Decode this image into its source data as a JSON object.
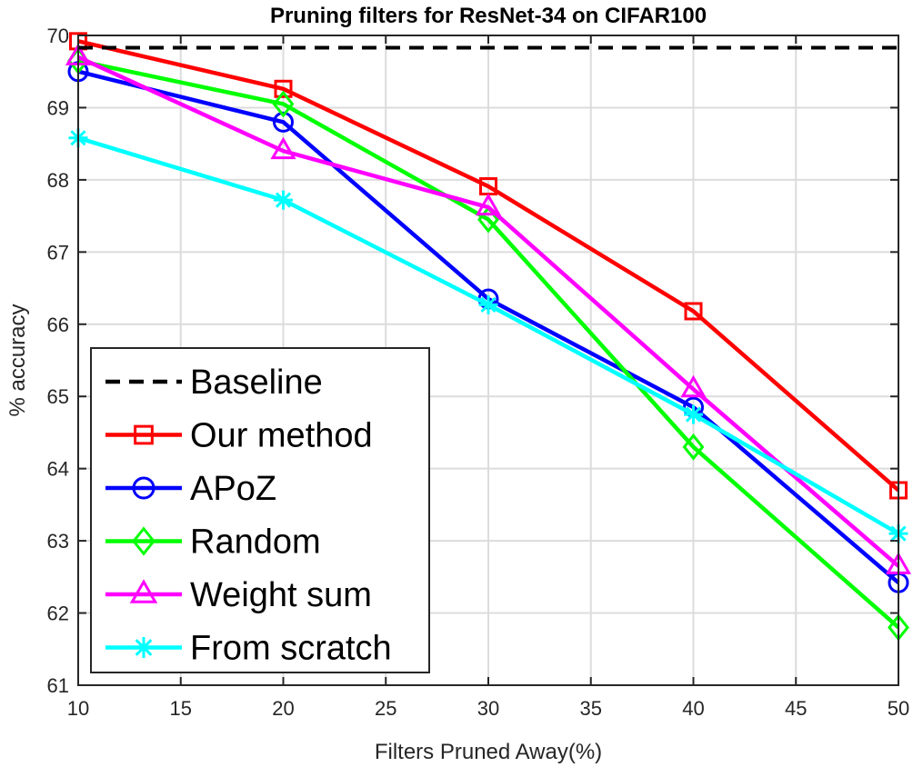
{
  "chart_data": {
    "type": "line",
    "title": "Pruning filters for ResNet-34 on CIFAR100",
    "xlabel": "Filters Pruned Away(%)",
    "ylabel": "% accuracy",
    "xlim": [
      10,
      50
    ],
    "ylim": [
      61,
      70
    ],
    "xticks": [
      10,
      15,
      20,
      25,
      30,
      35,
      40,
      45,
      50
    ],
    "yticks": [
      61,
      62,
      63,
      64,
      65,
      66,
      67,
      68,
      69,
      70
    ],
    "grid": true,
    "legend_position": "lower-left",
    "series": [
      {
        "name": "Baseline",
        "color": "#000000",
        "style": "dashed",
        "marker": "none",
        "x": [
          10,
          50
        ],
        "y": [
          69.83,
          69.83
        ]
      },
      {
        "name": "Our method",
        "color": "#ff0000",
        "style": "solid",
        "marker": "square",
        "x": [
          10,
          20,
          30,
          40,
          50
        ],
        "y": [
          69.92,
          69.26,
          67.91,
          66.18,
          63.7
        ]
      },
      {
        "name": "APoZ",
        "color": "#0000ff",
        "style": "solid",
        "marker": "circle",
        "x": [
          10,
          20,
          30,
          40,
          50
        ],
        "y": [
          69.5,
          68.8,
          66.35,
          64.85,
          62.42
        ]
      },
      {
        "name": "Random",
        "color": "#00ff00",
        "style": "solid",
        "marker": "diamond",
        "x": [
          10,
          20,
          30,
          40,
          50
        ],
        "y": [
          69.65,
          69.05,
          67.45,
          64.3,
          61.8
        ]
      },
      {
        "name": "Weight sum",
        "color": "#ff00ff",
        "style": "solid",
        "marker": "triangle",
        "x": [
          10,
          20,
          30,
          40,
          50
        ],
        "y": [
          69.7,
          68.4,
          67.62,
          65.1,
          62.65
        ]
      },
      {
        "name": "From scratch",
        "color": "#00ffff",
        "style": "solid",
        "marker": "asterisk",
        "x": [
          10,
          20,
          30,
          40,
          50
        ],
        "y": [
          68.58,
          67.72,
          66.27,
          64.75,
          63.1
        ]
      }
    ]
  }
}
